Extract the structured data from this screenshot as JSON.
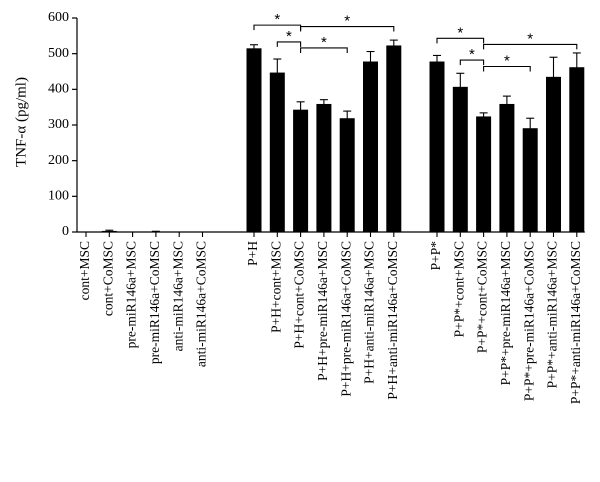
{
  "chart_data": {
    "type": "bar",
    "ylabel": "TNF-α (pg/ml)",
    "ylim": [
      0,
      600
    ],
    "yticks": [
      "0",
      "100",
      "200",
      "300",
      "400",
      "500",
      "600"
    ],
    "grid": false,
    "bar_color": "#000000",
    "groups": [
      {
        "categories": [
          "cont+MSC",
          "cont+CoMSC",
          "pre-miR146a+MSC",
          "pre-miR146a+CoMSC",
          "anti-miR146a+MSC",
          "anti-miR146a+CoMSC"
        ],
        "values": [
          0,
          3,
          0,
          1,
          0,
          0
        ],
        "errors": [
          0,
          2,
          0,
          1,
          0,
          0
        ]
      },
      {
        "categories": [
          "P+H",
          "P+H+cont+MSC",
          "P+H+cont+CoMSC",
          "P+H+pre-miR146a+MSC",
          "P+H+pre-miR146a+CoMSC",
          "P+H+anti-miR146a+MSC",
          "P+H+anti-miR146a+CoMSC"
        ],
        "values": [
          515,
          447,
          343,
          359,
          319,
          478,
          523
        ],
        "errors": [
          10,
          38,
          22,
          12,
          20,
          28,
          15
        ]
      },
      {
        "categories": [
          "P+P*",
          "P+P*+cont+MSC",
          "P+P*+cont+CoMSC",
          "P+P*+pre-miR146a+MSC",
          "P+P*+pre-miR146a+CoMSC",
          "P+P*+anti-miR146a+MSC",
          "P+P*+anti-miR146a+CoMSC"
        ],
        "values": [
          478,
          407,
          324,
          359,
          291,
          435,
          462
        ],
        "errors": [
          17,
          38,
          10,
          22,
          28,
          55,
          40
        ]
      }
    ],
    "significance": [
      {
        "group": 1,
        "from": 0,
        "to": 2,
        "y": 580,
        "label": "*"
      },
      {
        "group": 1,
        "from": 1,
        "to": 2,
        "y": 533,
        "label": "*"
      },
      {
        "group": 1,
        "from": 2,
        "to": 4,
        "y": 516,
        "label": "*"
      },
      {
        "group": 1,
        "from": 2,
        "to": 6,
        "y": 576,
        "label": "*"
      },
      {
        "group": 2,
        "from": 0,
        "to": 2,
        "y": 543,
        "label": "*"
      },
      {
        "group": 2,
        "from": 1,
        "to": 2,
        "y": 482,
        "label": "*"
      },
      {
        "group": 2,
        "from": 2,
        "to": 4,
        "y": 464,
        "label": "*"
      },
      {
        "group": 2,
        "from": 2,
        "to": 6,
        "y": 526,
        "label": "*"
      }
    ]
  }
}
